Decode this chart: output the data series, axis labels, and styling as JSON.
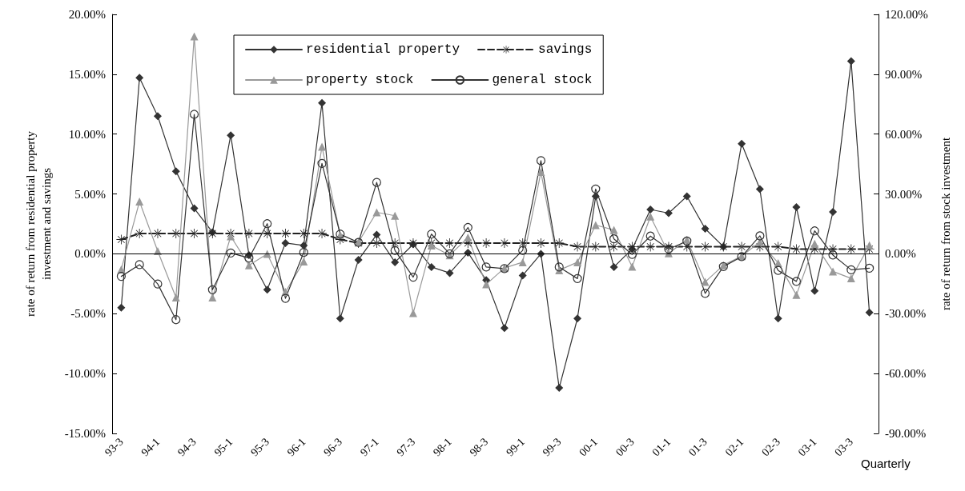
{
  "chart_data": {
    "type": "line",
    "ylabel": "rate of return from residential property\ninvestment and savings",
    "y2label": "rate of return from stock investment",
    "xlabel": "Quarterly",
    "categories": [
      "93-3",
      null,
      "94-1",
      null,
      "94-3",
      null,
      "95-1",
      null,
      "95-3",
      null,
      "96-1",
      null,
      "96-3",
      null,
      "97-1",
      null,
      "97-3",
      null,
      "98-1",
      null,
      "98-3",
      null,
      "99-1",
      null,
      "99-3",
      null,
      "00-1",
      null,
      "00-3",
      null,
      "01-1",
      null,
      "01-3",
      null,
      "02-1",
      null,
      "02-3",
      null,
      "03-1",
      null,
      "03-3",
      null
    ],
    "ylim": [
      -15,
      20
    ],
    "yticks": [
      {
        "value": -15,
        "label": "-15.00%"
      },
      {
        "value": -10,
        "label": "-10.00%"
      },
      {
        "value": -5,
        "label": "-5.00%"
      },
      {
        "value": 0,
        "label": "0.00%"
      },
      {
        "value": 5,
        "label": "5.00%"
      },
      {
        "value": 10,
        "label": "10.00%"
      },
      {
        "value": 15,
        "label": "15.00%"
      },
      {
        "value": 20,
        "label": "20.00%"
      }
    ],
    "y2lim": [
      -90,
      120
    ],
    "y2ticks": [
      {
        "value": -90,
        "label": "-90.00%"
      },
      {
        "value": -60,
        "label": "-60.00%"
      },
      {
        "value": -30,
        "label": "-30.00%"
      },
      {
        "value": 0,
        "label": "0.00%"
      },
      {
        "value": 30,
        "label": "30.00%"
      },
      {
        "value": 60,
        "label": "60.00%"
      },
      {
        "value": 90,
        "label": "90.00%"
      },
      {
        "value": 120,
        "label": "120.00%"
      }
    ],
    "grid": false,
    "ref_lines": [
      {
        "axis": "y",
        "value": 0,
        "color": "#000000"
      }
    ],
    "legend": "top",
    "series": [
      {
        "name": "residential property",
        "color": "#333333",
        "marker": "diamond",
        "line_style": "solid",
        "values": [
          -4.5,
          14.7,
          11.5,
          6.9,
          3.8,
          1.8,
          9.9,
          -0.1,
          -3.0,
          0.9,
          0.7,
          12.6,
          -5.4,
          -0.5,
          1.6,
          -0.7,
          0.8,
          -1.1,
          -1.6,
          0.1,
          -2.2,
          -6.2,
          -1.8,
          0,
          -11.2,
          -5.4,
          4.8,
          -1.1,
          0.4,
          3.7,
          3.4,
          4.8,
          2.1,
          0.6,
          9.2,
          5.4,
          -5.4,
          3.9,
          -3.1,
          3.5,
          16.1,
          -4.9
        ]
      },
      {
        "name": "savings",
        "color": "#222222",
        "marker": "cross",
        "line_style": "dashed",
        "values": [
          1.2,
          1.7,
          1.7,
          1.7,
          1.7,
          1.7,
          1.7,
          1.7,
          1.7,
          1.7,
          1.7,
          1.7,
          1.2,
          0.9,
          0.9,
          0.9,
          0.9,
          0.9,
          0.9,
          0.9,
          0.9,
          0.9,
          0.9,
          0.9,
          0.9,
          0.6,
          0.6,
          0.6,
          0.6,
          0.6,
          0.6,
          0.6,
          0.6,
          0.6,
          0.6,
          0.6,
          0.6,
          0.4,
          0.4,
          0.4,
          0.4,
          0.4
        ]
      },
      {
        "name": "property stock",
        "color": "#999999",
        "marker": "triangle",
        "line_style": "solid",
        "axis": "y2",
        "values": [
          -7.8,
          26.2,
          1.4,
          -21.9,
          109,
          -21.9,
          8.8,
          -5.7,
          0,
          -19.1,
          -3.8,
          53.7,
          9.5,
          5.9,
          20.8,
          19.1,
          -29.7,
          4.2,
          -0.7,
          8.2,
          -15.3,
          -7.1,
          -4.2,
          41.0,
          -8.2,
          -4.2,
          14.4,
          12.0,
          -6.4,
          18.7,
          0.3,
          7.1,
          -14.1,
          -5.7,
          -1.1,
          6,
          -4.6,
          -20.6,
          5.1,
          -8.8,
          -12.3,
          4.3
        ]
      },
      {
        "name": "general stock",
        "color": "#333333",
        "marker": "circle",
        "line_style": "solid",
        "axis": "y2",
        "values": [
          -11.3,
          -5.4,
          -15.1,
          -33.0,
          69.9,
          -18.0,
          0.4,
          -2.1,
          15.1,
          -22.3,
          0.7,
          45.3,
          9.9,
          5.7,
          35.8,
          1.7,
          -11.7,
          9.9,
          0,
          13.2,
          -6.6,
          -7.4,
          1.7,
          46.7,
          -6.6,
          -12.4,
          32.5,
          7.5,
          -0.3,
          8.9,
          2.4,
          6.4,
          -19.8,
          -6.4,
          -1.4,
          9,
          -8.3,
          -13.8,
          11.5,
          -0.6,
          -8.0,
          -7.2
        ]
      }
    ]
  }
}
